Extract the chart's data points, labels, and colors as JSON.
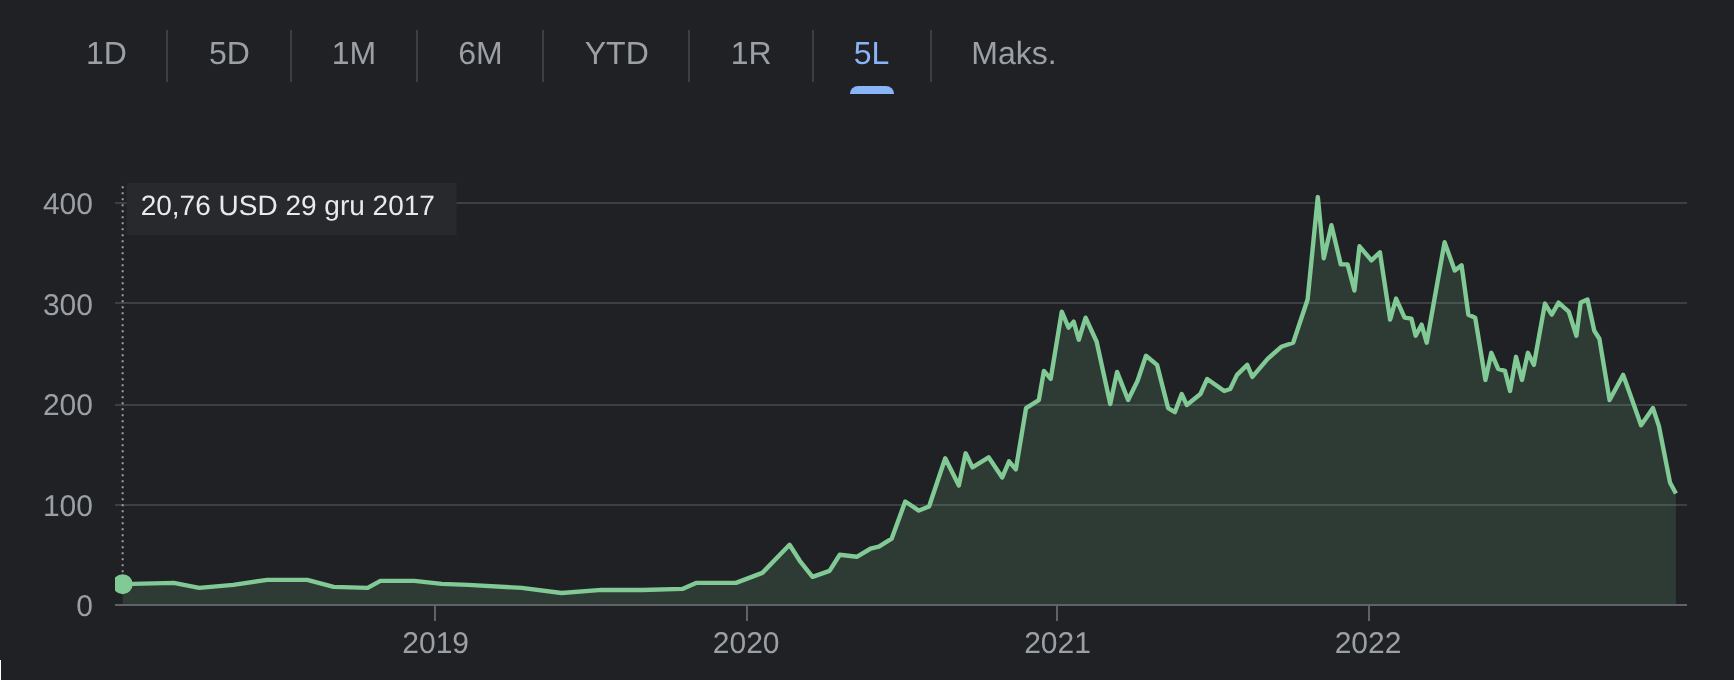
{
  "chart_data": {
    "type": "area",
    "grid": "y",
    "annotations": [
      "1D",
      "5D",
      "1M",
      "6M",
      "YTD",
      "1R",
      "5L",
      "Maks.",
      {
        "text": "20,76 USD  29 gru 2017",
        "x": "2017-12-29",
        "y": 20.76
      }
    ],
    "xlim": [
      "2017-12-20",
      "2023-01-11"
    ],
    "xticks": [
      {
        "value": "2019-01-01",
        "label": "2019"
      },
      {
        "value": "2020-01-01",
        "label": "2020"
      },
      {
        "value": "2021-01-01",
        "label": "2021"
      },
      {
        "value": "2022-01-01",
        "label": "2022"
      }
    ],
    "ylim": [
      0,
      420
    ],
    "yticks": [
      0,
      100,
      200,
      300,
      400
    ],
    "series": [
      {
        "color": "#81c995",
        "x": [
          "2017-12-29",
          "2018-02-27",
          "2018-03-29",
          "2018-05-08",
          "2018-06-17",
          "2018-08-03",
          "2018-09-03",
          "2018-10-13",
          "2018-10-28",
          "2018-12-07",
          "2019-01-08",
          "2019-02-08",
          "2019-04-12",
          "2019-05-29",
          "2019-07-15",
          "2019-09-01",
          "2019-10-18",
          "2019-11-03",
          "2019-12-20",
          "2020-01-20",
          "2020-02-21",
          "2020-03-04",
          "2020-03-19",
          "2020-04-08",
          "2020-04-20",
          "2020-05-10",
          "2020-05-26",
          "2020-06-05",
          "2020-06-20",
          "2020-07-06",
          "2020-07-22",
          "2020-08-03",
          "2020-08-22",
          "2020-09-07",
          "2020-09-15",
          "2020-09-23",
          "2020-10-12",
          "2020-10-28",
          "2020-11-05",
          "2020-11-13",
          "2020-11-25",
          "2020-12-10",
          "2020-12-16",
          "2020-12-24",
          "2021-01-06",
          "2021-01-14",
          "2021-01-20",
          "2021-01-26",
          "2021-02-03",
          "2021-02-16",
          "2021-03-04",
          "2021-03-12",
          "2021-03-25",
          "2021-04-05",
          "2021-04-15",
          "2021-04-28",
          "2021-05-11",
          "2021-05-19",
          "2021-05-27",
          "2021-06-02",
          "2021-06-18",
          "2021-06-26",
          "2021-07-16",
          "2021-07-23",
          "2021-07-31",
          "2021-08-12",
          "2021-08-18",
          "2021-09-05",
          "2021-09-21",
          "2021-10-05",
          "2021-10-22",
          "2021-11-03",
          "2021-11-10",
          "2021-11-19",
          "2021-11-30",
          "2021-12-08",
          "2021-12-16",
          "2021-12-22",
          "2022-01-05",
          "2022-01-15",
          "2022-01-27",
          "2022-02-03",
          "2022-02-13",
          "2022-02-21",
          "2022-02-26",
          "2022-03-05",
          "2022-03-11",
          "2022-04-01",
          "2022-04-13",
          "2022-04-21",
          "2022-04-29",
          "2022-05-07",
          "2022-05-19",
          "2022-05-26",
          "2022-06-03",
          "2022-06-11",
          "2022-06-17",
          "2022-06-24",
          "2022-07-01",
          "2022-07-08",
          "2022-07-15",
          "2022-07-28",
          "2022-08-05",
          "2022-08-13",
          "2022-08-25",
          "2022-09-03",
          "2022-09-08",
          "2022-09-16",
          "2022-09-24",
          "2022-09-30",
          "2022-10-12",
          "2022-10-28",
          "2022-11-05",
          "2022-11-18",
          "2022-12-02",
          "2022-12-09",
          "2022-12-22",
          "2022-12-29"
        ],
        "values": [
          20.76,
          22,
          17,
          20,
          25,
          25,
          18,
          17,
          24,
          24,
          21,
          20,
          17,
          12,
          15,
          15,
          16,
          22,
          22,
          32,
          60,
          44,
          28,
          34,
          50,
          48,
          56,
          58,
          66,
          103,
          94,
          98,
          146,
          119,
          151,
          137,
          147,
          127,
          143,
          135,
          196,
          204,
          233,
          225,
          292,
          276,
          282,
          264,
          286,
          262,
          200,
          232,
          204,
          223,
          248,
          239,
          196,
          192,
          210,
          199,
          210,
          225,
          213,
          215,
          229,
          239,
          227,
          245,
          257,
          261,
          304,
          406,
          345,
          378,
          339,
          339,
          313,
          357,
          343,
          351,
          284,
          305,
          286,
          285,
          268,
          279,
          261,
          361,
          333,
          338,
          289,
          286,
          224,
          251,
          235,
          233,
          213,
          247,
          224,
          251,
          239,
          300,
          289,
          301,
          292,
          268,
          301,
          304,
          273,
          265,
          204,
          229,
          210,
          179,
          196,
          178,
          122,
          111
        ]
      }
    ]
  }
}
